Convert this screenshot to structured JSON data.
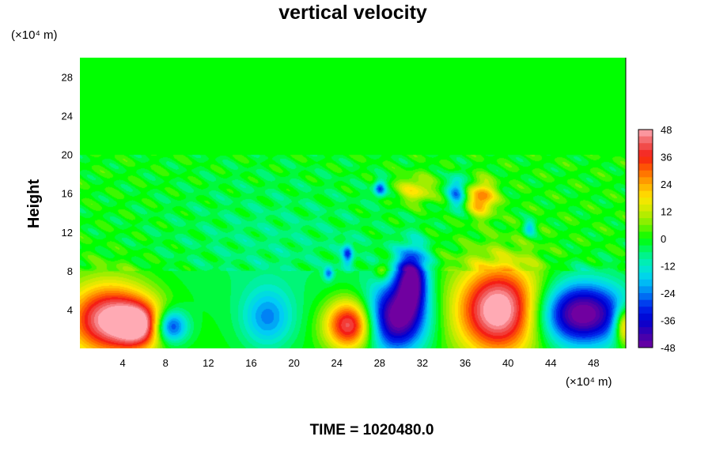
{
  "chart_data": {
    "type": "heatmap",
    "title": "vertical velocity",
    "xlabel": "",
    "ylabel": "Height",
    "x_unit": "(×10⁴ m)",
    "y_unit": "(×10⁴ m)",
    "xlim": [
      0,
      51
    ],
    "ylim": [
      0,
      30
    ],
    "x_ticks": [
      4,
      8,
      12,
      16,
      20,
      24,
      28,
      32,
      36,
      40,
      44,
      48
    ],
    "y_ticks": [
      4,
      8,
      12,
      16,
      20,
      24,
      28
    ],
    "colorbar": {
      "min": -48,
      "max": 48,
      "ticks": [
        48,
        36,
        24,
        12,
        0,
        -12,
        -24,
        -36,
        -48
      ]
    },
    "features": [
      {
        "name": "updraft-west",
        "x": 2.8,
        "y": 3.0,
        "sx": 2.8,
        "sy": 2.6,
        "amp": 50
      },
      {
        "name": "updraft-west-2",
        "x": 5.6,
        "y": 2.4,
        "sx": 1.5,
        "sy": 1.6,
        "amp": 32
      },
      {
        "name": "downdraft-8",
        "x": 8.4,
        "y": 2.3,
        "sx": 1.1,
        "sy": 1.2,
        "amp": -36
      },
      {
        "name": "downdraft-18",
        "x": 17.5,
        "y": 3.2,
        "sx": 1.7,
        "sy": 2.2,
        "amp": -22
      },
      {
        "name": "updraft-25",
        "x": 25.2,
        "y": 2.5,
        "sx": 1.6,
        "sy": 1.8,
        "amp": 46
      },
      {
        "name": "downdraft-30",
        "x": 29.5,
        "y": 3.2,
        "sx": 2.0,
        "sy": 2.5,
        "amp": -50
      },
      {
        "name": "downdraft-31-upper",
        "x": 31.0,
        "y": 7.3,
        "sx": 1.0,
        "sy": 2.2,
        "amp": -45
      },
      {
        "name": "updraft-39",
        "x": 39.2,
        "y": 4.0,
        "sx": 2.8,
        "sy": 3.2,
        "amp": 55
      },
      {
        "name": "downdraft-47",
        "x": 46.8,
        "y": 3.6,
        "sx": 3.0,
        "sy": 2.3,
        "amp": -52
      },
      {
        "name": "updraft-edge",
        "x": 50.9,
        "y": 2.4,
        "sx": 0.7,
        "sy": 1.4,
        "amp": 35
      },
      {
        "name": "upper-updraft-31",
        "x": 31.3,
        "y": 16.4,
        "sx": 1.2,
        "sy": 1.0,
        "amp": 18
      },
      {
        "name": "upper-updraft-37",
        "x": 37.5,
        "y": 15.5,
        "sx": 0.9,
        "sy": 1.2,
        "amp": 30
      },
      {
        "name": "upper-downdraft-35",
        "x": 35.2,
        "y": 16.2,
        "sx": 0.6,
        "sy": 1.2,
        "amp": -24
      },
      {
        "name": "upper-downdraft-27",
        "x": 28.0,
        "y": 16.5,
        "sx": 0.4,
        "sy": 0.6,
        "amp": -28
      },
      {
        "name": "mid-downdraft-25",
        "x": 25.0,
        "y": 9.8,
        "sx": 0.35,
        "sy": 0.8,
        "amp": -25
      },
      {
        "name": "mid-downdraft-23",
        "x": 23.2,
        "y": 7.8,
        "sx": 0.3,
        "sy": 0.5,
        "amp": -22
      },
      {
        "name": "mid-updraft-28",
        "x": 28.2,
        "y": 8.0,
        "sx": 0.5,
        "sy": 0.7,
        "amp": 14
      },
      {
        "name": "light-downdraft-41",
        "x": 42.0,
        "y": 12.5,
        "sx": 0.4,
        "sy": 0.6,
        "amp": -18
      },
      {
        "name": "broad-weak-mid",
        "x": 18.0,
        "y": 11.0,
        "sx": 8.0,
        "sy": 5.0,
        "amp": -6
      }
    ]
  },
  "footer": {
    "time_label": "TIME = 1020480.0"
  }
}
